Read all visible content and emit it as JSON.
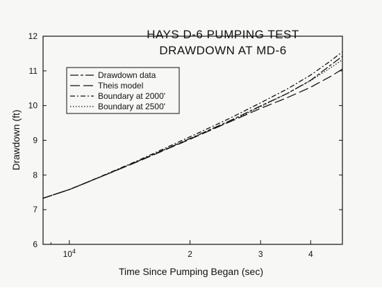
{
  "chart_data": {
    "type": "line",
    "title": [
      "HAYS D-6 PUMPING TEST",
      "DRAWDOWN AT MD-6"
    ],
    "xlabel": "Time Since Pumping Began (sec)",
    "ylabel": "Drawdown (ft)",
    "x_scale": "log",
    "xlim": [
      8600,
      48000
    ],
    "ylim": [
      6,
      12
    ],
    "x_ticks": [
      {
        "value": 10000,
        "label": "10",
        "exp": "4"
      },
      {
        "value": 20000,
        "label": "2",
        "exp": ""
      },
      {
        "value": 30000,
        "label": "3",
        "exp": ""
      },
      {
        "value": 40000,
        "label": "4",
        "exp": ""
      }
    ],
    "y_ticks": [
      6,
      7,
      8,
      9,
      10,
      11,
      12
    ],
    "grid": false,
    "legend_position": "upper-left",
    "series": [
      {
        "name": "Drawdown data",
        "dash": "long-short",
        "x": [
          8600,
          10000,
          12000,
          15000,
          20000,
          25000,
          30000,
          35000,
          40000,
          45000,
          48000
        ],
        "y": [
          7.33,
          7.58,
          7.95,
          8.42,
          9.05,
          9.55,
          9.99,
          10.35,
          10.73,
          11.18,
          11.42
        ]
      },
      {
        "name": "Theis model",
        "dash": "long",
        "x": [
          8600,
          10000,
          12000,
          15000,
          20000,
          25000,
          30000,
          35000,
          40000,
          45000,
          48000
        ],
        "y": [
          7.33,
          7.58,
          7.95,
          8.41,
          9.03,
          9.52,
          9.92,
          10.23,
          10.53,
          10.85,
          11.05
        ]
      },
      {
        "name": "Boundary at 2000'",
        "dash": "dash-dot",
        "x": [
          8600,
          10000,
          12000,
          15000,
          20000,
          25000,
          30000,
          35000,
          40000,
          45000,
          48000
        ],
        "y": [
          7.33,
          7.58,
          7.96,
          8.44,
          9.1,
          9.62,
          10.08,
          10.48,
          10.88,
          11.3,
          11.55
        ]
      },
      {
        "name": "Boundary at 2500'",
        "dash": "dotted",
        "x": [
          8600,
          10000,
          12000,
          15000,
          20000,
          25000,
          30000,
          35000,
          40000,
          45000,
          48000
        ],
        "y": [
          7.33,
          7.58,
          7.95,
          8.42,
          9.05,
          9.53,
          9.97,
          10.35,
          10.72,
          11.1,
          11.32
        ]
      }
    ]
  }
}
